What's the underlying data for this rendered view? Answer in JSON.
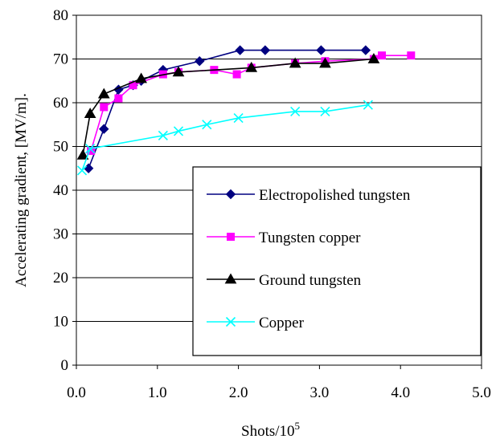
{
  "chart_data": {
    "type": "line",
    "xlabel": "Shots/10",
    "xlabel_sup": "5",
    "ylabel": "Accelerating gradient, [MV/m].",
    "xlim": [
      0,
      5
    ],
    "ylim": [
      0,
      80
    ],
    "x_ticks": [
      "0.0",
      "1.0",
      "2.0",
      "3.0",
      "4.0",
      "5.0"
    ],
    "y_ticks": [
      "0",
      "10",
      "20",
      "30",
      "40",
      "50",
      "60",
      "70",
      "80"
    ],
    "grid": "horizontal",
    "legend_position": "lower-right",
    "series": [
      {
        "name": "Electropolished tungsten",
        "color": "#000080",
        "marker": "diamond",
        "x": [
          0.15,
          0.34,
          0.52,
          0.7,
          0.8,
          1.07,
          1.52,
          2.02,
          2.33,
          3.02,
          3.57
        ],
        "y": [
          45,
          54,
          63,
          64,
          65,
          67.5,
          69.5,
          72,
          72,
          72,
          72
        ]
      },
      {
        "name": "Tungsten copper",
        "color": "#ff00ff",
        "marker": "square",
        "x": [
          0.18,
          0.34,
          0.52,
          0.7,
          1.07,
          1.26,
          1.7,
          1.98,
          2.16,
          2.7,
          3.07,
          3.67,
          3.77,
          4.13
        ],
        "y": [
          49,
          59,
          61,
          64,
          66.5,
          67,
          67.5,
          66.5,
          68,
          69,
          69.5,
          70,
          70.8,
          70.8
        ]
      },
      {
        "name": "Ground tungsten",
        "color": "#000000",
        "marker": "triangle",
        "x": [
          0.08,
          0.17,
          0.34,
          0.8,
          1.26,
          2.16,
          2.7,
          3.07,
          3.67
        ],
        "y": [
          48,
          57.5,
          62,
          65.5,
          67,
          68,
          69,
          69,
          70
        ]
      },
      {
        "name": "Copper",
        "color": "#00ffff",
        "marker": "x",
        "x": [
          0.07,
          0.17,
          1.07,
          1.26,
          1.61,
          2.0,
          2.7,
          3.07,
          3.6
        ],
        "y": [
          44.5,
          49.5,
          52.5,
          53.5,
          55,
          56.5,
          58,
          58,
          59.5
        ]
      }
    ]
  }
}
